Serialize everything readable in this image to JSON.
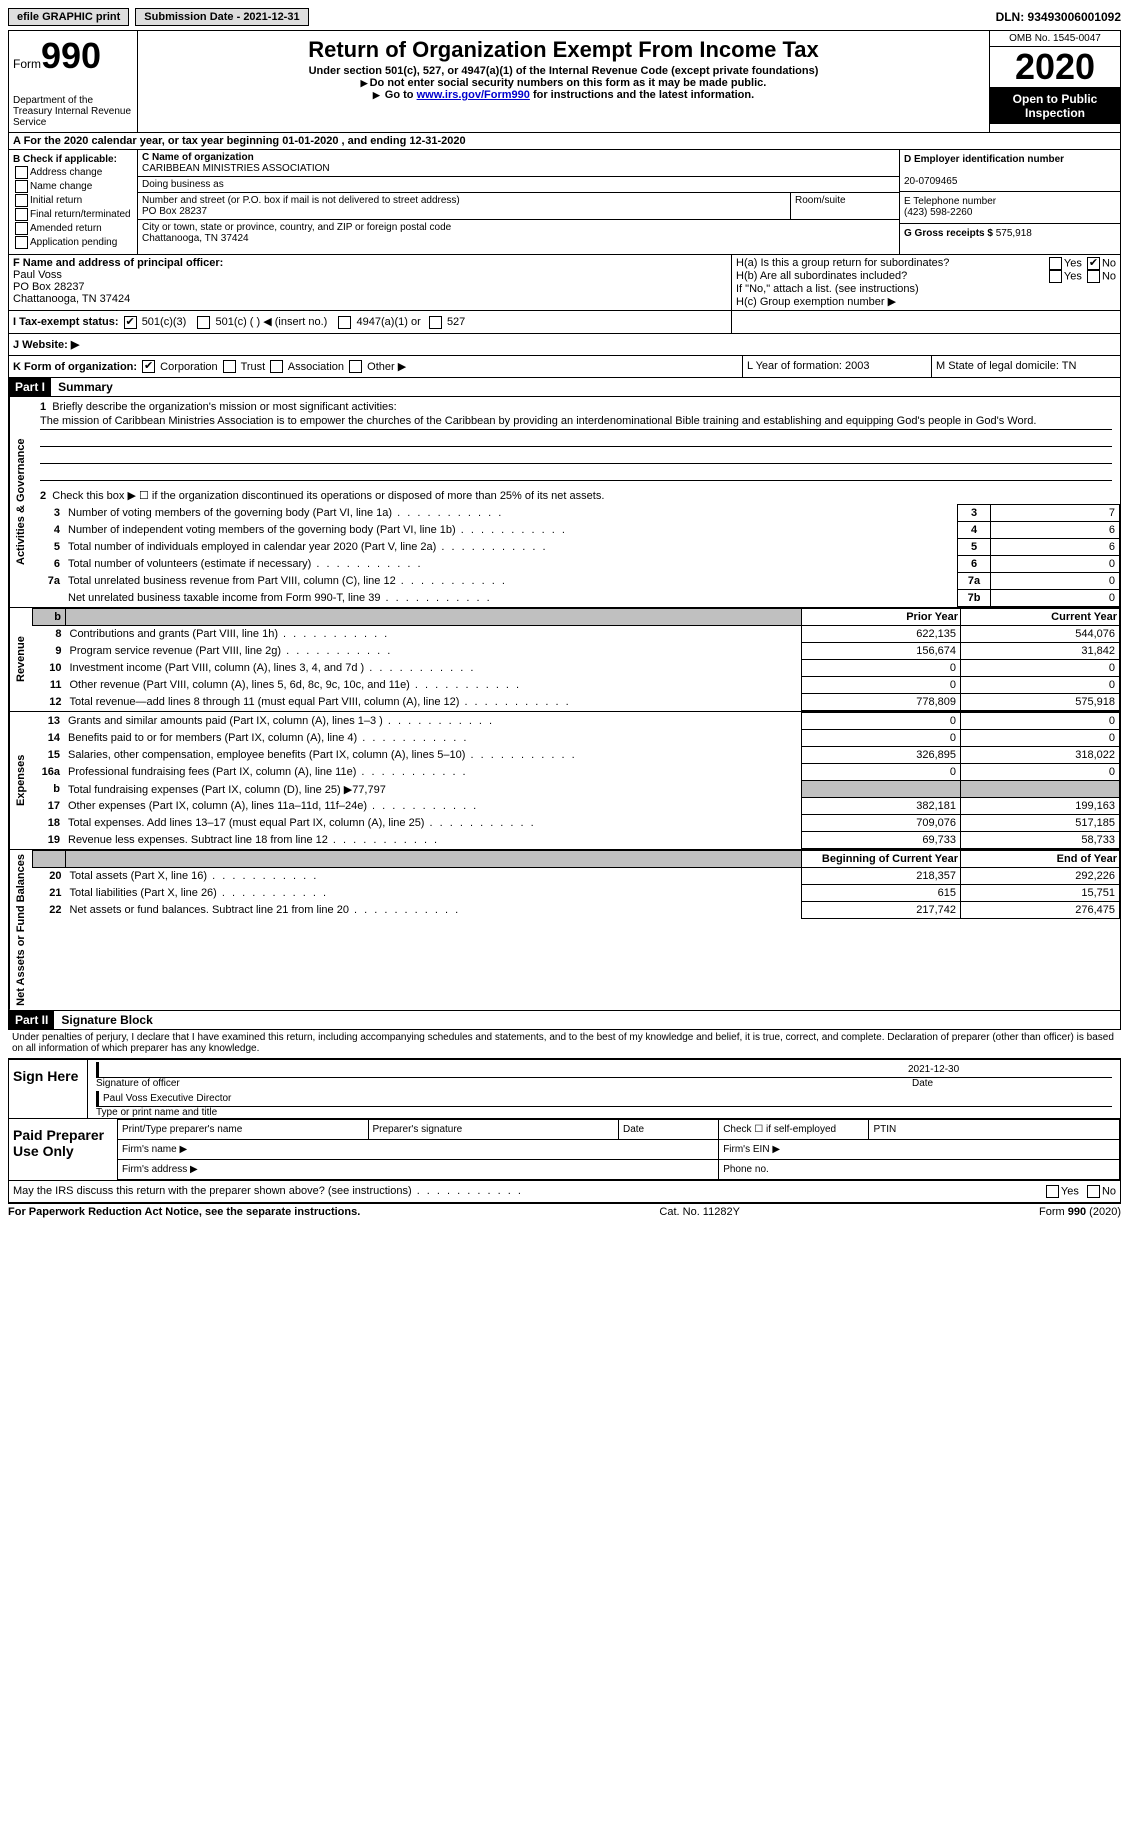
{
  "topbar": {
    "efile": "efile GRAPHIC print",
    "submission_label": "Submission Date - 2021-12-31",
    "dln": "DLN: 93493006001092"
  },
  "header": {
    "form_word": "Form",
    "form_num": "990",
    "dept": "Department of the Treasury\nInternal Revenue Service",
    "title": "Return of Organization Exempt From Income Tax",
    "sub": "Under section 501(c), 527, or 4947(a)(1) of the Internal Revenue Code (except private foundations)",
    "note1": "Do not enter social security numbers on this form as it may be made public.",
    "note2_pre": "Go to ",
    "note2_link": "www.irs.gov/Form990",
    "note2_post": " for instructions and the latest information.",
    "omb": "OMB No. 1545-0047",
    "year": "2020",
    "inspection": "Open to Public Inspection"
  },
  "rowA": "A For the 2020 calendar year, or tax year beginning 01-01-2020  , and ending 12-31-2020",
  "boxB": {
    "title": "B Check if applicable:",
    "items": [
      "Address change",
      "Name change",
      "Initial return",
      "Final return/terminated",
      "Amended return",
      "Application pending"
    ]
  },
  "boxC": {
    "label_name": "C Name of organization",
    "org_name": "CARIBBEAN MINISTRIES ASSOCIATION",
    "dba_label": "Doing business as",
    "dba": "",
    "addr_label": "Number and street (or P.O. box if mail is not delivered to street address)",
    "room_label": "Room/suite",
    "addr": "PO Box 28237",
    "city_label": "City or town, state or province, country, and ZIP or foreign postal code",
    "city": "Chattanooga, TN  37424"
  },
  "boxD": {
    "label": "D Employer identification number",
    "ein": "20-0709465",
    "tel_label": "E Telephone number",
    "tel": "(423) 598-2260",
    "gross_label": "G Gross receipts $",
    "gross": "575,918"
  },
  "boxF": {
    "label": "F  Name and address of principal officer:",
    "name": "Paul Voss",
    "addr1": "PO Box 28237",
    "addr2": "Chattanooga, TN  37424"
  },
  "boxH": {
    "ha": "H(a)  Is this a group return for subordinates?",
    "hb": "H(b)  Are all subordinates included?",
    "note": "If \"No,\" attach a list. (see instructions)",
    "hc": "H(c)  Group exemption number ▶"
  },
  "exempt": {
    "label": "I  Tax-exempt status:",
    "opt1": "501(c)(3)",
    "opt2": "501(c) (  ) ◀ (insert no.)",
    "opt3": "4947(a)(1) or",
    "opt4": "527"
  },
  "web": "J  Website: ▶",
  "rowK": {
    "k": "K Form of organization:",
    "k_opts": [
      "Corporation",
      "Trust",
      "Association",
      "Other ▶"
    ],
    "l": "L Year of formation: 2003",
    "m": "M State of legal domicile: TN"
  },
  "part1": {
    "header": "Part I",
    "title": "Summary",
    "line1_label": "Briefly describe the organization's mission or most significant activities:",
    "mission": "The mission of Caribbean Ministries Association is to empower the churches of the Caribbean by providing an interdenominational Bible training and establishing and equipping God's people in God's Word.",
    "line2": "Check this box ▶ ☐  if the organization discontinued its operations or disposed of more than 25% of its net assets.",
    "gov_lines": [
      {
        "n": "3",
        "t": "Number of voting members of the governing body (Part VI, line 1a)",
        "box": "3",
        "v": "7"
      },
      {
        "n": "4",
        "t": "Number of independent voting members of the governing body (Part VI, line 1b)",
        "box": "4",
        "v": "6"
      },
      {
        "n": "5",
        "t": "Total number of individuals employed in calendar year 2020 (Part V, line 2a)",
        "box": "5",
        "v": "6"
      },
      {
        "n": "6",
        "t": "Total number of volunteers (estimate if necessary)",
        "box": "6",
        "v": "0"
      },
      {
        "n": "7a",
        "t": "Total unrelated business revenue from Part VIII, column (C), line 12",
        "box": "7a",
        "v": "0"
      },
      {
        "n": "",
        "t": "Net unrelated business taxable income from Form 990-T, line 39",
        "box": "7b",
        "v": "0"
      }
    ],
    "prior_label": "Prior Year",
    "curr_label": "Current Year",
    "rev_lines": [
      {
        "n": "8",
        "t": "Contributions and grants (Part VIII, line 1h)",
        "p": "622,135",
        "c": "544,076"
      },
      {
        "n": "9",
        "t": "Program service revenue (Part VIII, line 2g)",
        "p": "156,674",
        "c": "31,842"
      },
      {
        "n": "10",
        "t": "Investment income (Part VIII, column (A), lines 3, 4, and 7d )",
        "p": "0",
        "c": "0"
      },
      {
        "n": "11",
        "t": "Other revenue (Part VIII, column (A), lines 5, 6d, 8c, 9c, 10c, and 11e)",
        "p": "0",
        "c": "0"
      },
      {
        "n": "12",
        "t": "Total revenue—add lines 8 through 11 (must equal Part VIII, column (A), line 12)",
        "p": "778,809",
        "c": "575,918"
      }
    ],
    "exp_lines": [
      {
        "n": "13",
        "t": "Grants and similar amounts paid (Part IX, column (A), lines 1–3 )",
        "p": "0",
        "c": "0"
      },
      {
        "n": "14",
        "t": "Benefits paid to or for members (Part IX, column (A), line 4)",
        "p": "0",
        "c": "0"
      },
      {
        "n": "15",
        "t": "Salaries, other compensation, employee benefits (Part IX, column (A), lines 5–10)",
        "p": "326,895",
        "c": "318,022"
      },
      {
        "n": "16a",
        "t": "Professional fundraising fees (Part IX, column (A), line 11e)",
        "p": "0",
        "c": "0"
      },
      {
        "n": "b",
        "t": "Total fundraising expenses (Part IX, column (D), line 25) ▶77,797",
        "p": "",
        "c": "",
        "grey": true
      },
      {
        "n": "17",
        "t": "Other expenses (Part IX, column (A), lines 11a–11d, 11f–24e)",
        "p": "382,181",
        "c": "199,163"
      },
      {
        "n": "18",
        "t": "Total expenses. Add lines 13–17 (must equal Part IX, column (A), line 25)",
        "p": "709,076",
        "c": "517,185"
      },
      {
        "n": "19",
        "t": "Revenue less expenses. Subtract line 18 from line 12",
        "p": "69,733",
        "c": "58,733"
      }
    ],
    "boy_label": "Beginning of Current Year",
    "eoy_label": "End of Year",
    "net_lines": [
      {
        "n": "20",
        "t": "Total assets (Part X, line 16)",
        "p": "218,357",
        "c": "292,226"
      },
      {
        "n": "21",
        "t": "Total liabilities (Part X, line 26)",
        "p": "615",
        "c": "15,751"
      },
      {
        "n": "22",
        "t": "Net assets or fund balances. Subtract line 21 from line 20",
        "p": "217,742",
        "c": "276,475"
      }
    ]
  },
  "part2": {
    "header": "Part II",
    "title": "Signature Block",
    "penalty": "Under penalties of perjury, I declare that I have examined this return, including accompanying schedules and statements, and to the best of my knowledge and belief, it is true, correct, and complete. Declaration of preparer (other than officer) is based on all information of which preparer has any knowledge.",
    "sign_here": "Sign Here",
    "sig_officer": "Signature of officer",
    "sig_date": "2021-12-30",
    "date_label": "Date",
    "officer_name": "Paul Voss  Executive Director",
    "type_name": "Type or print name and title",
    "paid": "Paid Preparer Use Only",
    "prep_name": "Print/Type preparer's name",
    "prep_sig": "Preparer's signature",
    "prep_date": "Date",
    "self_emp": "Check ☐ if self-employed",
    "ptin": "PTIN",
    "firm_name": "Firm's name  ▶",
    "firm_ein": "Firm's EIN ▶",
    "firm_addr": "Firm's address ▶",
    "phone": "Phone no.",
    "discuss": "May the IRS discuss this return with the preparer shown above? (see instructions)"
  },
  "footer": {
    "paperwork": "For Paperwork Reduction Act Notice, see the separate instructions.",
    "cat": "Cat. No. 11282Y",
    "form": "Form 990 (2020)"
  }
}
